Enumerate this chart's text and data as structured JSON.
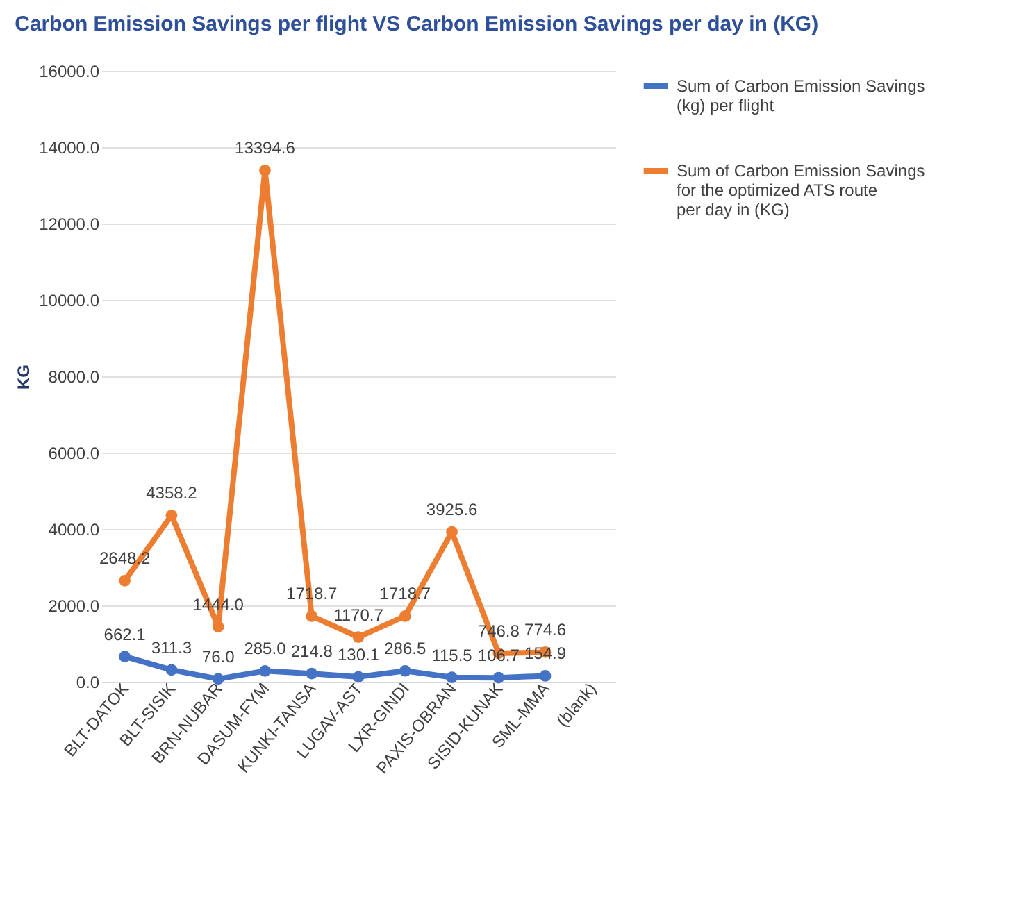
{
  "chart_data": {
    "type": "line",
    "title": "Carbon Emission Savings  per flight VS Carbon Emission Savings per day in (KG)",
    "ylabel": "KG",
    "categories": [
      "BLT-DATOK",
      "BLT-SISIK",
      "BRN-NUBAR",
      "DASUM-FYM",
      "KUNKI-TANSA",
      "LUGAV-AST",
      "LXR-GINDI",
      "PAXIS-OBRAN",
      "SISID-KUNAK",
      "SML-MMA",
      "(blank)"
    ],
    "series": [
      {
        "name": "Sum of Carbon Emission Savings (kg) per flight",
        "color": "#4472c4",
        "values": [
          662.1,
          311.3,
          76.0,
          285.0,
          214.8,
          130.1,
          286.5,
          115.5,
          106.7,
          154.9,
          null
        ],
        "value_labels": [
          "662.1",
          "311.3",
          "76.0",
          "285.0",
          "214.8",
          "130.1",
          "286.5",
          "115.5",
          "106.7",
          "154.9",
          null
        ]
      },
      {
        "name": "Sum of Carbon Emission Savings for the optimized ATS route per day in (KG)",
        "color": "#ed7d31",
        "values": [
          2648.2,
          4358.2,
          1444.0,
          13394.6,
          1718.7,
          1170.7,
          1718.7,
          3925.6,
          746.8,
          774.6,
          null
        ],
        "value_labels": [
          "2648.2",
          "4358.2",
          "1444.0",
          "13394.6",
          "1718.7",
          "1170.7",
          "1718.7",
          "3925.6",
          "746.8",
          "774.6",
          null
        ]
      }
    ],
    "ylim": [
      0,
      16000
    ],
    "yticks": [
      {
        "value": 0,
        "label": "0.0"
      },
      {
        "value": 2000,
        "label": "2000.0"
      },
      {
        "value": 4000,
        "label": "4000.0"
      },
      {
        "value": 6000,
        "label": "6000.0"
      },
      {
        "value": 8000,
        "label": "8000.0"
      },
      {
        "value": 10000,
        "label": "10000.0"
      },
      {
        "value": 12000,
        "label": "12000.0"
      },
      {
        "value": 14000,
        "label": "14000.0"
      },
      {
        "value": 16000,
        "label": "16000.0"
      }
    ],
    "grid": "y",
    "legend": "right",
    "marker": "circle",
    "line_style": "solid"
  }
}
